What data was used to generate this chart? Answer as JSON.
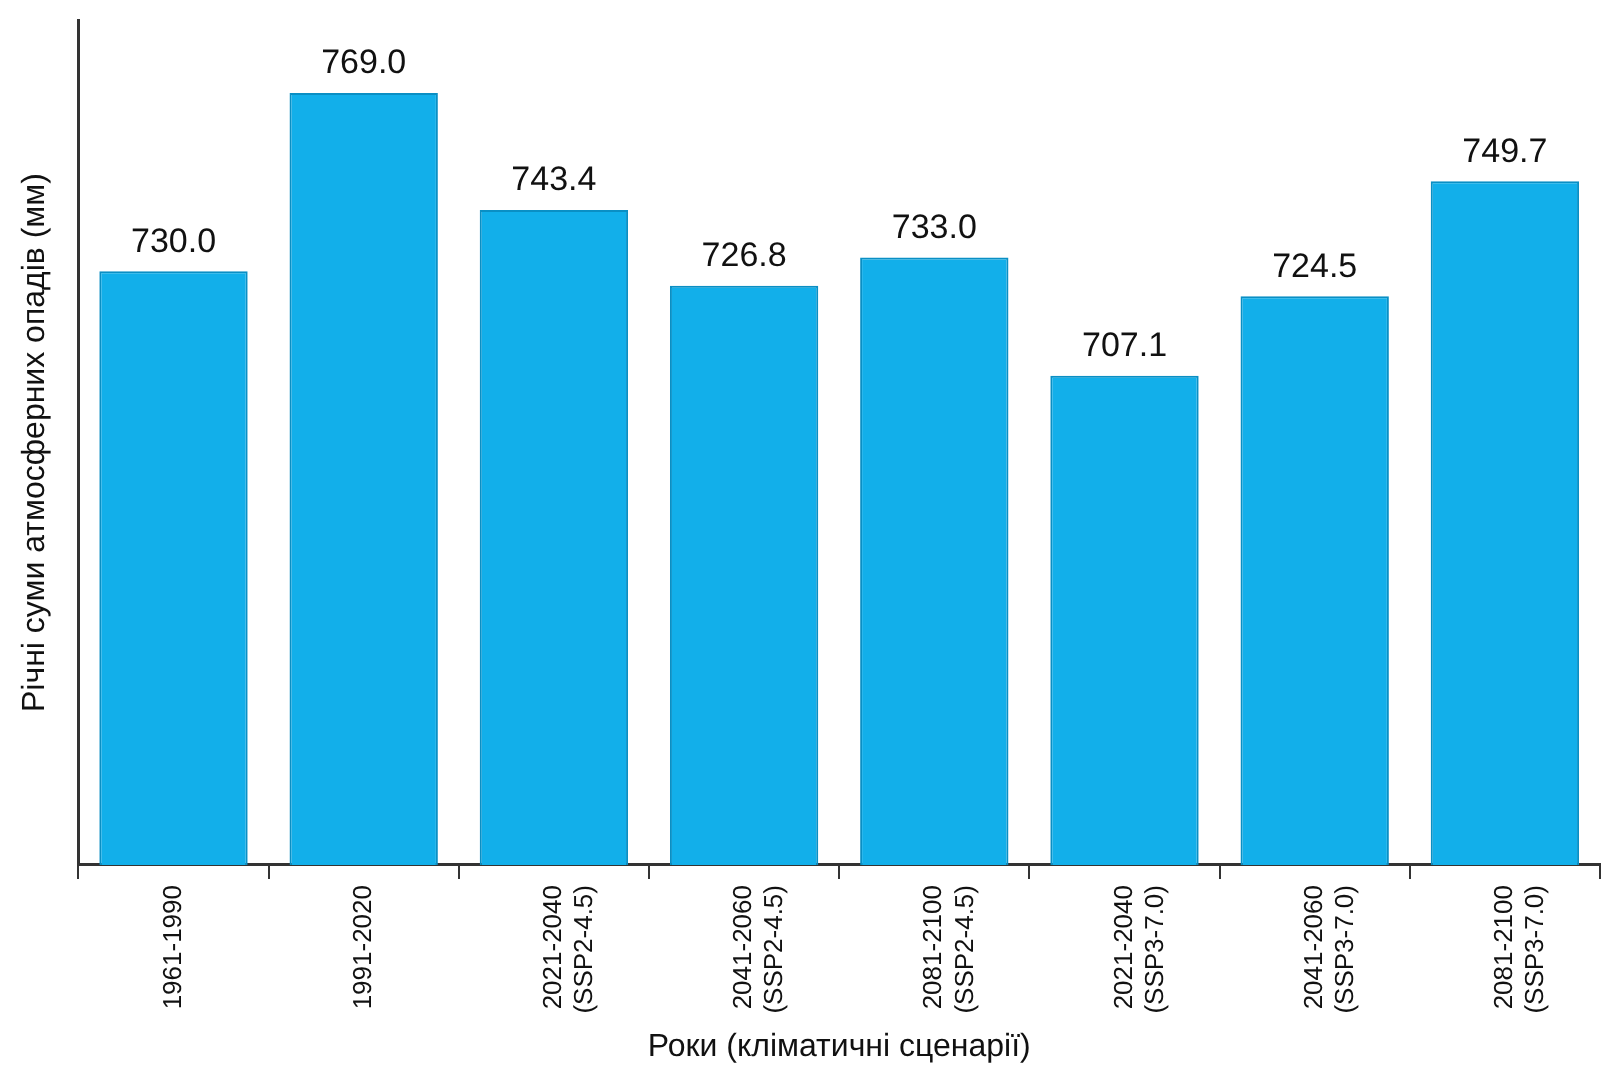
{
  "chart_data": {
    "type": "bar",
    "xlabel": "Роки (кліматичні сценарії)",
    "ylabel": "Річні суми атмосферних опадів (мм)",
    "categories": [
      "1961-1990",
      "1991-2020",
      "2021-2040\n(SSP2-4.5)",
      "2041-2060\n(SSP2-4.5)",
      "2081-2100\n(SSP2-4.5)",
      "2021-2040\n(SSP3-7.0)",
      "2041-2060\n(SSP3-7.0)",
      "2081-2100\n(SSP3-7.0)"
    ],
    "values": [
      730.0,
      769.0,
      743.4,
      726.8,
      733.0,
      707.1,
      724.5,
      749.7
    ],
    "value_labels": [
      "730.0",
      "769.0",
      "743.4",
      "726.8",
      "733.0",
      "707.1",
      "724.5",
      "749.7"
    ],
    "color": "#12afea",
    "ylim": [
      600,
      785
    ],
    "tick_labels": "x",
    "grid": false,
    "legend": false
  }
}
